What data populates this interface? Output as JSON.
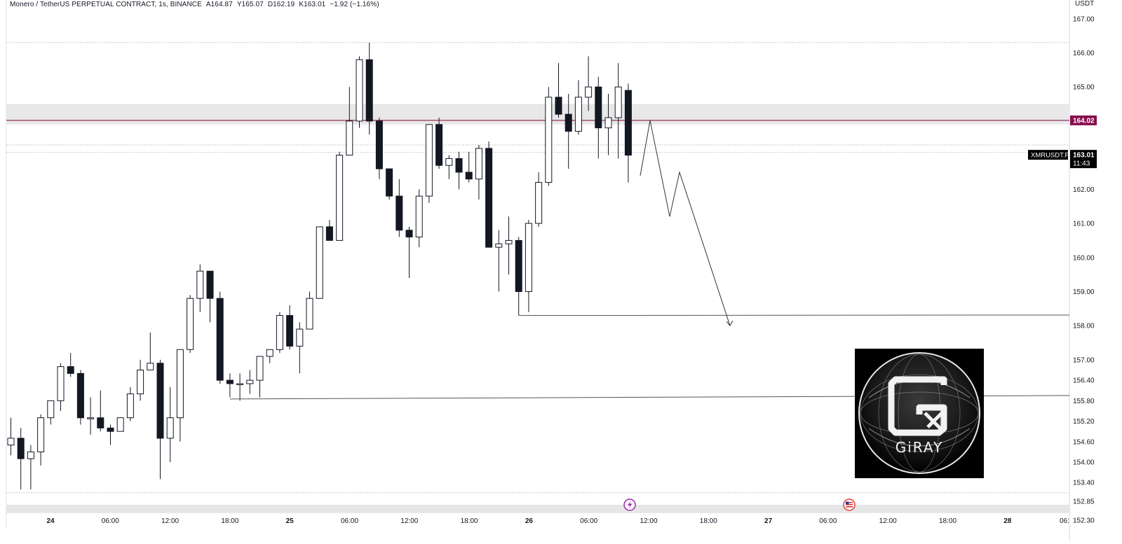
{
  "header": {
    "symbol_name": "Monero / TetherUS PERPETUAL CONTRACT, 1s, BINANCE",
    "open": "A164.87",
    "high": "Y165.07",
    "low": "D162.19",
    "close": "K163.01",
    "change": "−1.92 (−1.16%)"
  },
  "price_axis": {
    "currency": "USDT",
    "ticks": [
      "167.00",
      "166.00",
      "165.00",
      "162.00",
      "161.00",
      "160.00",
      "159.00",
      "158.00",
      "157.00",
      "156.40",
      "155.80",
      "155.20",
      "154.60",
      "154.00",
      "153.40",
      "152.85",
      "152.30"
    ]
  },
  "time_axis": {
    "labels": [
      "24",
      "06:00",
      "12:00",
      "18:00",
      "25",
      "06:00",
      "12:00",
      "18:00",
      "26",
      "06:00",
      "12:00",
      "18:00",
      "27",
      "06:00",
      "12:00",
      "18:00",
      "28",
      "06:"
    ]
  },
  "price_tags": {
    "level": "164.02",
    "symbol": "XMRUSDT.P",
    "last": "163.01",
    "countdown": "11:43"
  },
  "colors": {
    "up_body": "#ffffff",
    "down_body": "#131722",
    "wick": "#131722",
    "level_line": "#8e1a4a",
    "level_tag": "#880e4f",
    "zone_fill": "#e8e8e8",
    "drawing": "#555555"
  },
  "icons": [
    "lightning-event-icon",
    "us-flag-event-icon"
  ],
  "logo": {
    "text": "GiRAY"
  },
  "chart_data": {
    "type": "candlestick",
    "ylim": [
      152.05,
      167.55
    ],
    "candles": [
      {
        "o": 154.5,
        "h": 155.3,
        "l": 154.2,
        "c": 154.7
      },
      {
        "o": 154.7,
        "h": 155.0,
        "l": 153.2,
        "c": 154.1
      },
      {
        "o": 154.1,
        "h": 154.5,
        "l": 153.2,
        "c": 154.3
      },
      {
        "o": 154.3,
        "h": 155.4,
        "l": 153.9,
        "c": 155.3
      },
      {
        "o": 155.3,
        "h": 155.8,
        "l": 155.1,
        "c": 155.8
      },
      {
        "o": 155.8,
        "h": 156.9,
        "l": 155.5,
        "c": 156.8
      },
      {
        "o": 156.8,
        "h": 157.2,
        "l": 156.5,
        "c": 156.6
      },
      {
        "o": 156.6,
        "h": 156.7,
        "l": 155.1,
        "c": 155.3
      },
      {
        "o": 155.3,
        "h": 155.9,
        "l": 154.8,
        "c": 155.3
      },
      {
        "o": 155.3,
        "h": 156.1,
        "l": 154.9,
        "c": 155.0
      },
      {
        "o": 155.0,
        "h": 155.1,
        "l": 154.5,
        "c": 154.9
      },
      {
        "o": 154.9,
        "h": 155.3,
        "l": 154.9,
        "c": 155.3
      },
      {
        "o": 155.3,
        "h": 156.2,
        "l": 155.2,
        "c": 156.0
      },
      {
        "o": 156.0,
        "h": 157.0,
        "l": 155.8,
        "c": 156.7
      },
      {
        "o": 156.7,
        "h": 157.8,
        "l": 156.7,
        "c": 156.9
      },
      {
        "o": 156.9,
        "h": 157.0,
        "l": 153.5,
        "c": 154.7
      },
      {
        "o": 154.7,
        "h": 156.2,
        "l": 154.0,
        "c": 155.3
      },
      {
        "o": 155.3,
        "h": 157.3,
        "l": 154.6,
        "c": 157.3
      },
      {
        "o": 157.3,
        "h": 158.9,
        "l": 157.2,
        "c": 158.8
      },
      {
        "o": 158.8,
        "h": 159.8,
        "l": 158.4,
        "c": 159.6
      },
      {
        "o": 159.6,
        "h": 159.6,
        "l": 158.1,
        "c": 158.8
      },
      {
        "o": 158.8,
        "h": 159.0,
        "l": 156.3,
        "c": 156.4
      },
      {
        "o": 156.4,
        "h": 156.6,
        "l": 155.9,
        "c": 156.3
      },
      {
        "o": 156.3,
        "h": 156.6,
        "l": 155.8,
        "c": 156.3
      },
      {
        "o": 156.3,
        "h": 156.7,
        "l": 156.0,
        "c": 156.4
      },
      {
        "o": 156.4,
        "h": 157.1,
        "l": 155.9,
        "c": 157.1
      },
      {
        "o": 157.1,
        "h": 157.3,
        "l": 156.9,
        "c": 157.3
      },
      {
        "o": 157.3,
        "h": 158.4,
        "l": 157.2,
        "c": 158.3
      },
      {
        "o": 158.3,
        "h": 158.6,
        "l": 157.3,
        "c": 157.4
      },
      {
        "o": 157.4,
        "h": 158.1,
        "l": 156.6,
        "c": 157.9
      },
      {
        "o": 157.9,
        "h": 159.0,
        "l": 157.9,
        "c": 158.8
      },
      {
        "o": 158.8,
        "h": 160.9,
        "l": 158.8,
        "c": 160.9
      },
      {
        "o": 160.9,
        "h": 161.1,
        "l": 160.5,
        "c": 160.5
      },
      {
        "o": 160.5,
        "h": 163.1,
        "l": 160.5,
        "c": 163.0
      },
      {
        "o": 163.0,
        "h": 165.0,
        "l": 163.0,
        "c": 164.0
      },
      {
        "o": 164.0,
        "h": 165.9,
        "l": 163.8,
        "c": 165.8
      },
      {
        "o": 165.8,
        "h": 166.3,
        "l": 163.6,
        "c": 164.0
      },
      {
        "o": 164.0,
        "h": 164.1,
        "l": 162.3,
        "c": 162.6
      },
      {
        "o": 162.6,
        "h": 162.6,
        "l": 161.7,
        "c": 161.8
      },
      {
        "o": 161.8,
        "h": 162.3,
        "l": 160.6,
        "c": 160.8
      },
      {
        "o": 160.8,
        "h": 160.9,
        "l": 159.4,
        "c": 160.6
      },
      {
        "o": 160.6,
        "h": 162.0,
        "l": 160.3,
        "c": 161.8
      },
      {
        "o": 161.8,
        "h": 163.9,
        "l": 161.6,
        "c": 163.9
      },
      {
        "o": 163.9,
        "h": 164.1,
        "l": 162.6,
        "c": 162.7
      },
      {
        "o": 162.7,
        "h": 163.0,
        "l": 162.3,
        "c": 162.9
      },
      {
        "o": 162.9,
        "h": 163.1,
        "l": 162.0,
        "c": 162.5
      },
      {
        "o": 162.5,
        "h": 163.1,
        "l": 162.2,
        "c": 162.3
      },
      {
        "o": 162.3,
        "h": 163.3,
        "l": 161.7,
        "c": 163.2
      },
      {
        "o": 163.2,
        "h": 163.4,
        "l": 160.3,
        "c": 160.3
      },
      {
        "o": 160.3,
        "h": 160.8,
        "l": 159.0,
        "c": 160.4
      },
      {
        "o": 160.4,
        "h": 161.2,
        "l": 159.5,
        "c": 160.5
      },
      {
        "o": 160.5,
        "h": 160.6,
        "l": 158.3,
        "c": 159.0
      },
      {
        "o": 159.0,
        "h": 161.1,
        "l": 158.4,
        "c": 161.0
      },
      {
        "o": 161.0,
        "h": 162.5,
        "l": 160.9,
        "c": 162.2
      },
      {
        "o": 162.2,
        "h": 165.0,
        "l": 162.1,
        "c": 164.7
      },
      {
        "o": 164.7,
        "h": 165.7,
        "l": 164.1,
        "c": 164.2
      },
      {
        "o": 164.2,
        "h": 164.8,
        "l": 162.6,
        "c": 163.7
      },
      {
        "o": 163.7,
        "h": 165.2,
        "l": 163.6,
        "c": 164.7
      },
      {
        "o": 164.7,
        "h": 165.9,
        "l": 164.3,
        "c": 165.0
      },
      {
        "o": 165.0,
        "h": 165.3,
        "l": 162.9,
        "c": 163.8
      },
      {
        "o": 163.8,
        "h": 164.8,
        "l": 163.0,
        "c": 164.1
      },
      {
        "o": 164.1,
        "h": 165.7,
        "l": 162.9,
        "c": 165.0
      },
      {
        "o": 164.9,
        "h": 165.1,
        "l": 162.2,
        "c": 163.0
      }
    ],
    "horizontal_levels": [
      164.02,
      166.3,
      163.3,
      163.08,
      153.1
    ],
    "resistance_zone": [
      163.9,
      164.5
    ],
    "support_lines": [
      158.3,
      155.85
    ],
    "projection_path": [
      162.4,
      164.02,
      161.2,
      162.5,
      158.0
    ]
  }
}
